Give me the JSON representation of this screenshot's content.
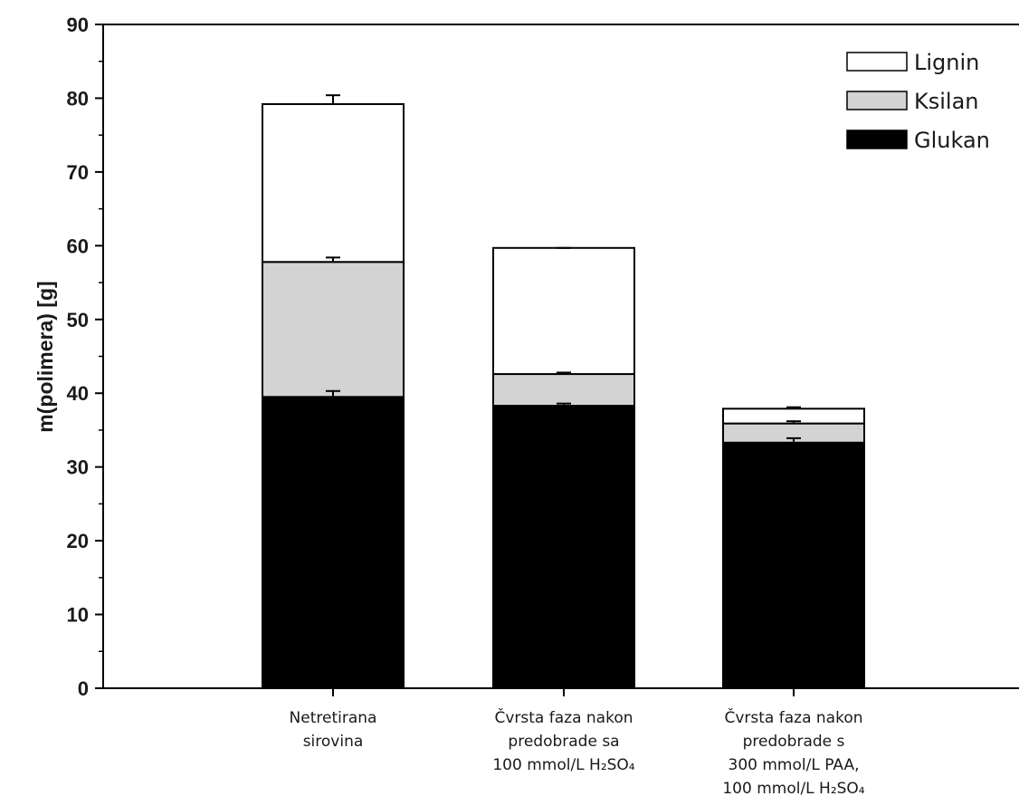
{
  "chart_data": {
    "type": "bar",
    "stacked": true,
    "title": "",
    "xlabel": "",
    "ylabel": "m(polimera) [g]",
    "ylim": [
      0,
      90
    ],
    "yticks": [
      0,
      10,
      20,
      30,
      40,
      50,
      60,
      70,
      80,
      90
    ],
    "grid": false,
    "legend_position": "top-right",
    "categories": [
      [
        "Netretirana",
        "sirovina"
      ],
      [
        "Čvrsta faza nakon",
        "predobrade sa",
        "100 mmol/L H₂SO₄"
      ],
      [
        "Čvrsta faza nakon",
        "predobrade s",
        "300 mmol/L PAA,",
        "100 mmol/L H₂SO₄"
      ]
    ],
    "series": [
      {
        "name": "Glukan",
        "color": "#000000",
        "values": [
          39.5,
          38.3,
          33.3
        ],
        "errors": [
          0.8,
          0.3,
          0.6
        ]
      },
      {
        "name": "Ksilan",
        "color": "#d3d3d3",
        "values": [
          18.3,
          4.3,
          2.6
        ],
        "errors": [
          0.6,
          0.2,
          0.3
        ]
      },
      {
        "name": "Lignin",
        "color": "#ffffff",
        "values": [
          21.4,
          17.1,
          2.0
        ],
        "errors": [
          1.2,
          0.0,
          0.2
        ]
      }
    ],
    "legend_order": [
      "Lignin",
      "Ksilan",
      "Glukan"
    ]
  }
}
